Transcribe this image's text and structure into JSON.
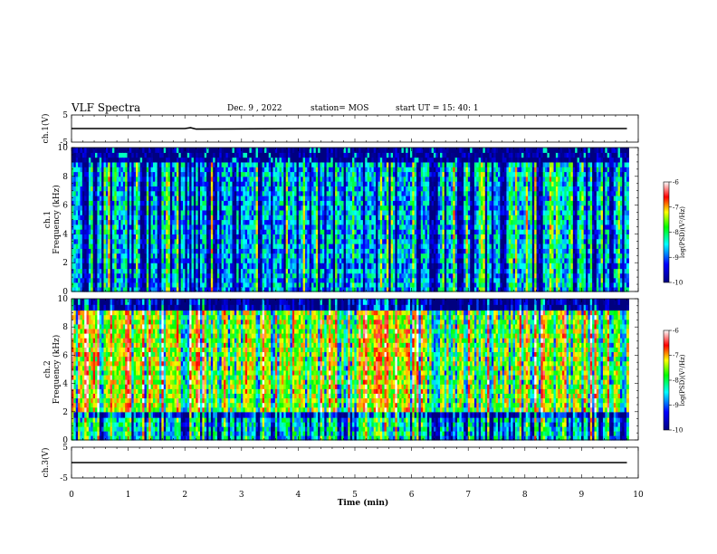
{
  "header": {
    "title": "VLF Spectra",
    "date": "Dec. 9 , 2022",
    "station": "station= MOS",
    "start": "start UT =  15: 40: 1"
  },
  "colors": {
    "colormap": [
      "#000080",
      "#0000ff",
      "#00ffff",
      "#00ff00",
      "#ffff00",
      "#ff0000",
      "#ffffff"
    ],
    "trace": "#000000"
  },
  "chart_data": [
    {
      "type": "line",
      "name": "ch1-voltage",
      "ylabel": "ch.1(V)",
      "ylim": [
        -5,
        5
      ],
      "yticks": [
        "5",
        "-5"
      ],
      "xlim": [
        0,
        10
      ],
      "x": [
        0,
        2,
        2.1,
        2.2,
        4,
        6,
        8,
        9.8
      ],
      "y": [
        0,
        0,
        0.3,
        -0.2,
        0,
        0,
        0,
        0
      ]
    },
    {
      "type": "heatmap",
      "name": "ch1-spectrogram",
      "ylabel": "ch.1\nFrequency (kHz)",
      "ylabel_line1": "ch.1",
      "ylabel_line2": "Frequency (kHz)",
      "ylim": [
        0,
        10
      ],
      "yticks": [
        "0",
        "2",
        "4",
        "6",
        "8",
        "10"
      ],
      "xlim": [
        0,
        10
      ],
      "data_xmax": 9.83,
      "colorbar": {
        "label": "log(PSD)(V²/Hz)",
        "range": [
          -10,
          -6
        ],
        "ticks": [
          "-6",
          "-7",
          "-8",
          "-9",
          "-10"
        ]
      },
      "bands": [
        {
          "f0": 0,
          "f1": 1.6,
          "level": -8.8
        },
        {
          "f0": 1.6,
          "f1": 2.0,
          "level": -9.0
        },
        {
          "f0": 2.0,
          "f1": 9.0,
          "level": -8.8
        },
        {
          "f0": 9.0,
          "f1": 10,
          "level": -10
        }
      ]
    },
    {
      "type": "heatmap",
      "name": "ch2-spectrogram",
      "ylabel": "ch.2\nFrequency (kHz)",
      "ylabel_line1": "ch.2",
      "ylabel_line2": "Frequency (kHz)",
      "ylim": [
        0,
        10
      ],
      "yticks": [
        "0",
        "2",
        "4",
        "6",
        "8",
        "10"
      ],
      "xlim": [
        0,
        10
      ],
      "data_xmax": 9.83,
      "colorbar": {
        "label": "log(PSD)(V²/Hz)",
        "range": [
          -10,
          -6
        ],
        "ticks": [
          "-6",
          "-7",
          "-8",
          "-9",
          "-10"
        ]
      },
      "bands": [
        {
          "f0": 0,
          "f1": 1.6,
          "level": -8.6
        },
        {
          "f0": 1.6,
          "f1": 2.0,
          "level": -9.3
        },
        {
          "f0": 2.0,
          "f1": 9.2,
          "level": -7.6
        },
        {
          "f0": 9.2,
          "f1": 10,
          "level": -9.8
        }
      ]
    },
    {
      "type": "line",
      "name": "ch3-voltage",
      "ylabel": "ch.3(V)",
      "ylim": [
        -5,
        5
      ],
      "yticks": [
        "5",
        "-5"
      ],
      "xlim": [
        0,
        10
      ],
      "x": [
        0,
        2,
        4,
        6,
        8,
        9.8
      ],
      "y": [
        0,
        0,
        0,
        0,
        0,
        0
      ]
    }
  ],
  "xaxis": {
    "label": "Time (min)",
    "ticks": [
      "0",
      "1",
      "2",
      "3",
      "4",
      "5",
      "6",
      "7",
      "8",
      "9",
      "10"
    ]
  }
}
